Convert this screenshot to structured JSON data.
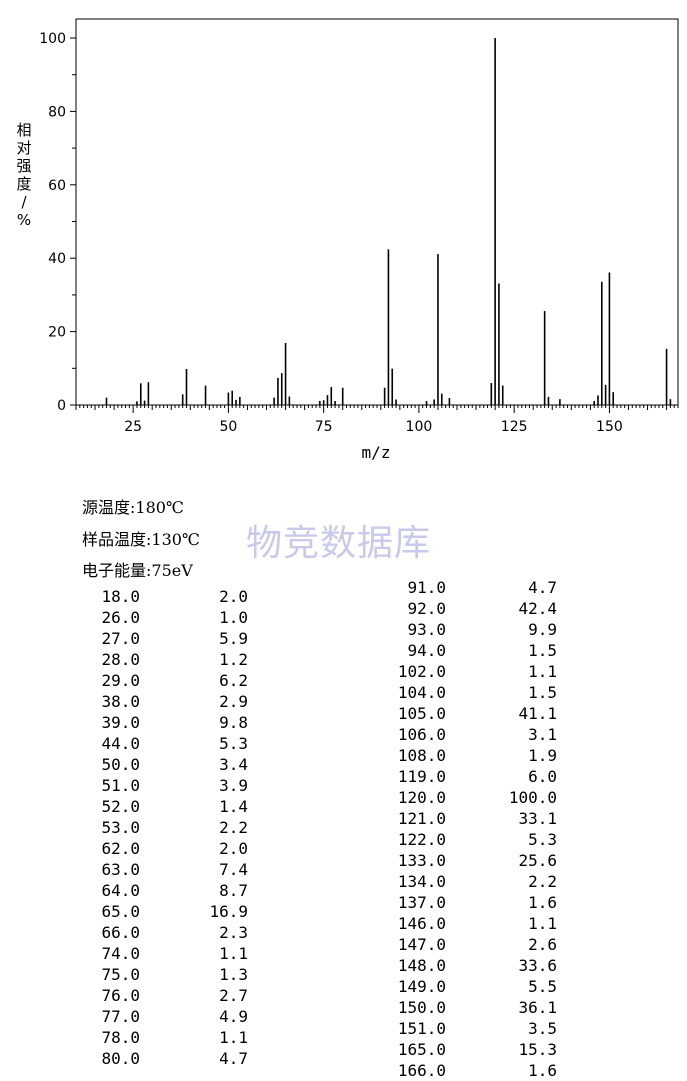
{
  "chart_data": {
    "type": "bar",
    "xlabel": "m/z",
    "ylabel": "相对强度/%",
    "xlim": [
      10,
      168
    ],
    "ylim": [
      0,
      100
    ],
    "xticks": [
      25,
      50,
      75,
      100,
      125,
      150
    ],
    "yticks": [
      0,
      20,
      40,
      60,
      80,
      100
    ],
    "grid": false,
    "peaks": [
      {
        "mz": 18.0,
        "intensity": 2.0
      },
      {
        "mz": 26.0,
        "intensity": 1.0
      },
      {
        "mz": 27.0,
        "intensity": 5.9
      },
      {
        "mz": 28.0,
        "intensity": 1.2
      },
      {
        "mz": 29.0,
        "intensity": 6.2
      },
      {
        "mz": 38.0,
        "intensity": 2.9
      },
      {
        "mz": 39.0,
        "intensity": 9.8
      },
      {
        "mz": 44.0,
        "intensity": 5.3
      },
      {
        "mz": 50.0,
        "intensity": 3.4
      },
      {
        "mz": 51.0,
        "intensity": 3.9
      },
      {
        "mz": 52.0,
        "intensity": 1.4
      },
      {
        "mz": 53.0,
        "intensity": 2.2
      },
      {
        "mz": 62.0,
        "intensity": 2.0
      },
      {
        "mz": 63.0,
        "intensity": 7.4
      },
      {
        "mz": 64.0,
        "intensity": 8.7
      },
      {
        "mz": 65.0,
        "intensity": 16.9
      },
      {
        "mz": 66.0,
        "intensity": 2.3
      },
      {
        "mz": 74.0,
        "intensity": 1.1
      },
      {
        "mz": 75.0,
        "intensity": 1.3
      },
      {
        "mz": 76.0,
        "intensity": 2.7
      },
      {
        "mz": 77.0,
        "intensity": 4.9
      },
      {
        "mz": 78.0,
        "intensity": 1.1
      },
      {
        "mz": 80.0,
        "intensity": 4.7
      },
      {
        "mz": 91.0,
        "intensity": 4.7
      },
      {
        "mz": 92.0,
        "intensity": 42.4
      },
      {
        "mz": 93.0,
        "intensity": 9.9
      },
      {
        "mz": 94.0,
        "intensity": 1.5
      },
      {
        "mz": 102.0,
        "intensity": 1.1
      },
      {
        "mz": 104.0,
        "intensity": 1.5
      },
      {
        "mz": 105.0,
        "intensity": 41.1
      },
      {
        "mz": 106.0,
        "intensity": 3.1
      },
      {
        "mz": 108.0,
        "intensity": 1.9
      },
      {
        "mz": 119.0,
        "intensity": 6.0
      },
      {
        "mz": 120.0,
        "intensity": 100.0
      },
      {
        "mz": 121.0,
        "intensity": 33.1
      },
      {
        "mz": 122.0,
        "intensity": 5.3
      },
      {
        "mz": 133.0,
        "intensity": 25.6
      },
      {
        "mz": 134.0,
        "intensity": 2.2
      },
      {
        "mz": 137.0,
        "intensity": 1.6
      },
      {
        "mz": 146.0,
        "intensity": 1.1
      },
      {
        "mz": 147.0,
        "intensity": 2.6
      },
      {
        "mz": 148.0,
        "intensity": 33.6
      },
      {
        "mz": 149.0,
        "intensity": 5.5
      },
      {
        "mz": 150.0,
        "intensity": 36.1
      },
      {
        "mz": 151.0,
        "intensity": 3.5
      },
      {
        "mz": 165.0,
        "intensity": 15.3
      },
      {
        "mz": 166.0,
        "intensity": 1.6
      }
    ]
  },
  "conditions": {
    "source_temp": "源温度:180℃",
    "sample_temp": "样品温度:130℃",
    "electron_energy": "电子能量:75eV"
  },
  "watermark": "物竞数据库",
  "table_left": [
    {
      "mz": "18.0",
      "ri": "2.0"
    },
    {
      "mz": "26.0",
      "ri": "1.0"
    },
    {
      "mz": "27.0",
      "ri": "5.9"
    },
    {
      "mz": "28.0",
      "ri": "1.2"
    },
    {
      "mz": "29.0",
      "ri": "6.2"
    },
    {
      "mz": "38.0",
      "ri": "2.9"
    },
    {
      "mz": "39.0",
      "ri": "9.8"
    },
    {
      "mz": "44.0",
      "ri": "5.3"
    },
    {
      "mz": "50.0",
      "ri": "3.4"
    },
    {
      "mz": "51.0",
      "ri": "3.9"
    },
    {
      "mz": "52.0",
      "ri": "1.4"
    },
    {
      "mz": "53.0",
      "ri": "2.2"
    },
    {
      "mz": "62.0",
      "ri": "2.0"
    },
    {
      "mz": "63.0",
      "ri": "7.4"
    },
    {
      "mz": "64.0",
      "ri": "8.7"
    },
    {
      "mz": "65.0",
      "ri": "16.9"
    },
    {
      "mz": "66.0",
      "ri": "2.3"
    },
    {
      "mz": "74.0",
      "ri": "1.1"
    },
    {
      "mz": "75.0",
      "ri": "1.3"
    },
    {
      "mz": "76.0",
      "ri": "2.7"
    },
    {
      "mz": "77.0",
      "ri": "4.9"
    },
    {
      "mz": "78.0",
      "ri": "1.1"
    },
    {
      "mz": "80.0",
      "ri": "4.7"
    }
  ],
  "table_right": [
    {
      "mz": "91.0",
      "ri": "4.7"
    },
    {
      "mz": "92.0",
      "ri": "42.4"
    },
    {
      "mz": "93.0",
      "ri": "9.9"
    },
    {
      "mz": "94.0",
      "ri": "1.5"
    },
    {
      "mz": "102.0",
      "ri": "1.1"
    },
    {
      "mz": "104.0",
      "ri": "1.5"
    },
    {
      "mz": "105.0",
      "ri": "41.1"
    },
    {
      "mz": "106.0",
      "ri": "3.1"
    },
    {
      "mz": "108.0",
      "ri": "1.9"
    },
    {
      "mz": "119.0",
      "ri": "6.0"
    },
    {
      "mz": "120.0",
      "ri": "100.0"
    },
    {
      "mz": "121.0",
      "ri": "33.1"
    },
    {
      "mz": "122.0",
      "ri": "5.3"
    },
    {
      "mz": "133.0",
      "ri": "25.6"
    },
    {
      "mz": "134.0",
      "ri": "2.2"
    },
    {
      "mz": "137.0",
      "ri": "1.6"
    },
    {
      "mz": "146.0",
      "ri": "1.1"
    },
    {
      "mz": "147.0",
      "ri": "2.6"
    },
    {
      "mz": "148.0",
      "ri": "33.6"
    },
    {
      "mz": "149.0",
      "ri": "5.5"
    },
    {
      "mz": "150.0",
      "ri": "36.1"
    },
    {
      "mz": "151.0",
      "ri": "3.5"
    },
    {
      "mz": "165.0",
      "ri": "15.3"
    },
    {
      "mz": "166.0",
      "ri": "1.6"
    }
  ]
}
